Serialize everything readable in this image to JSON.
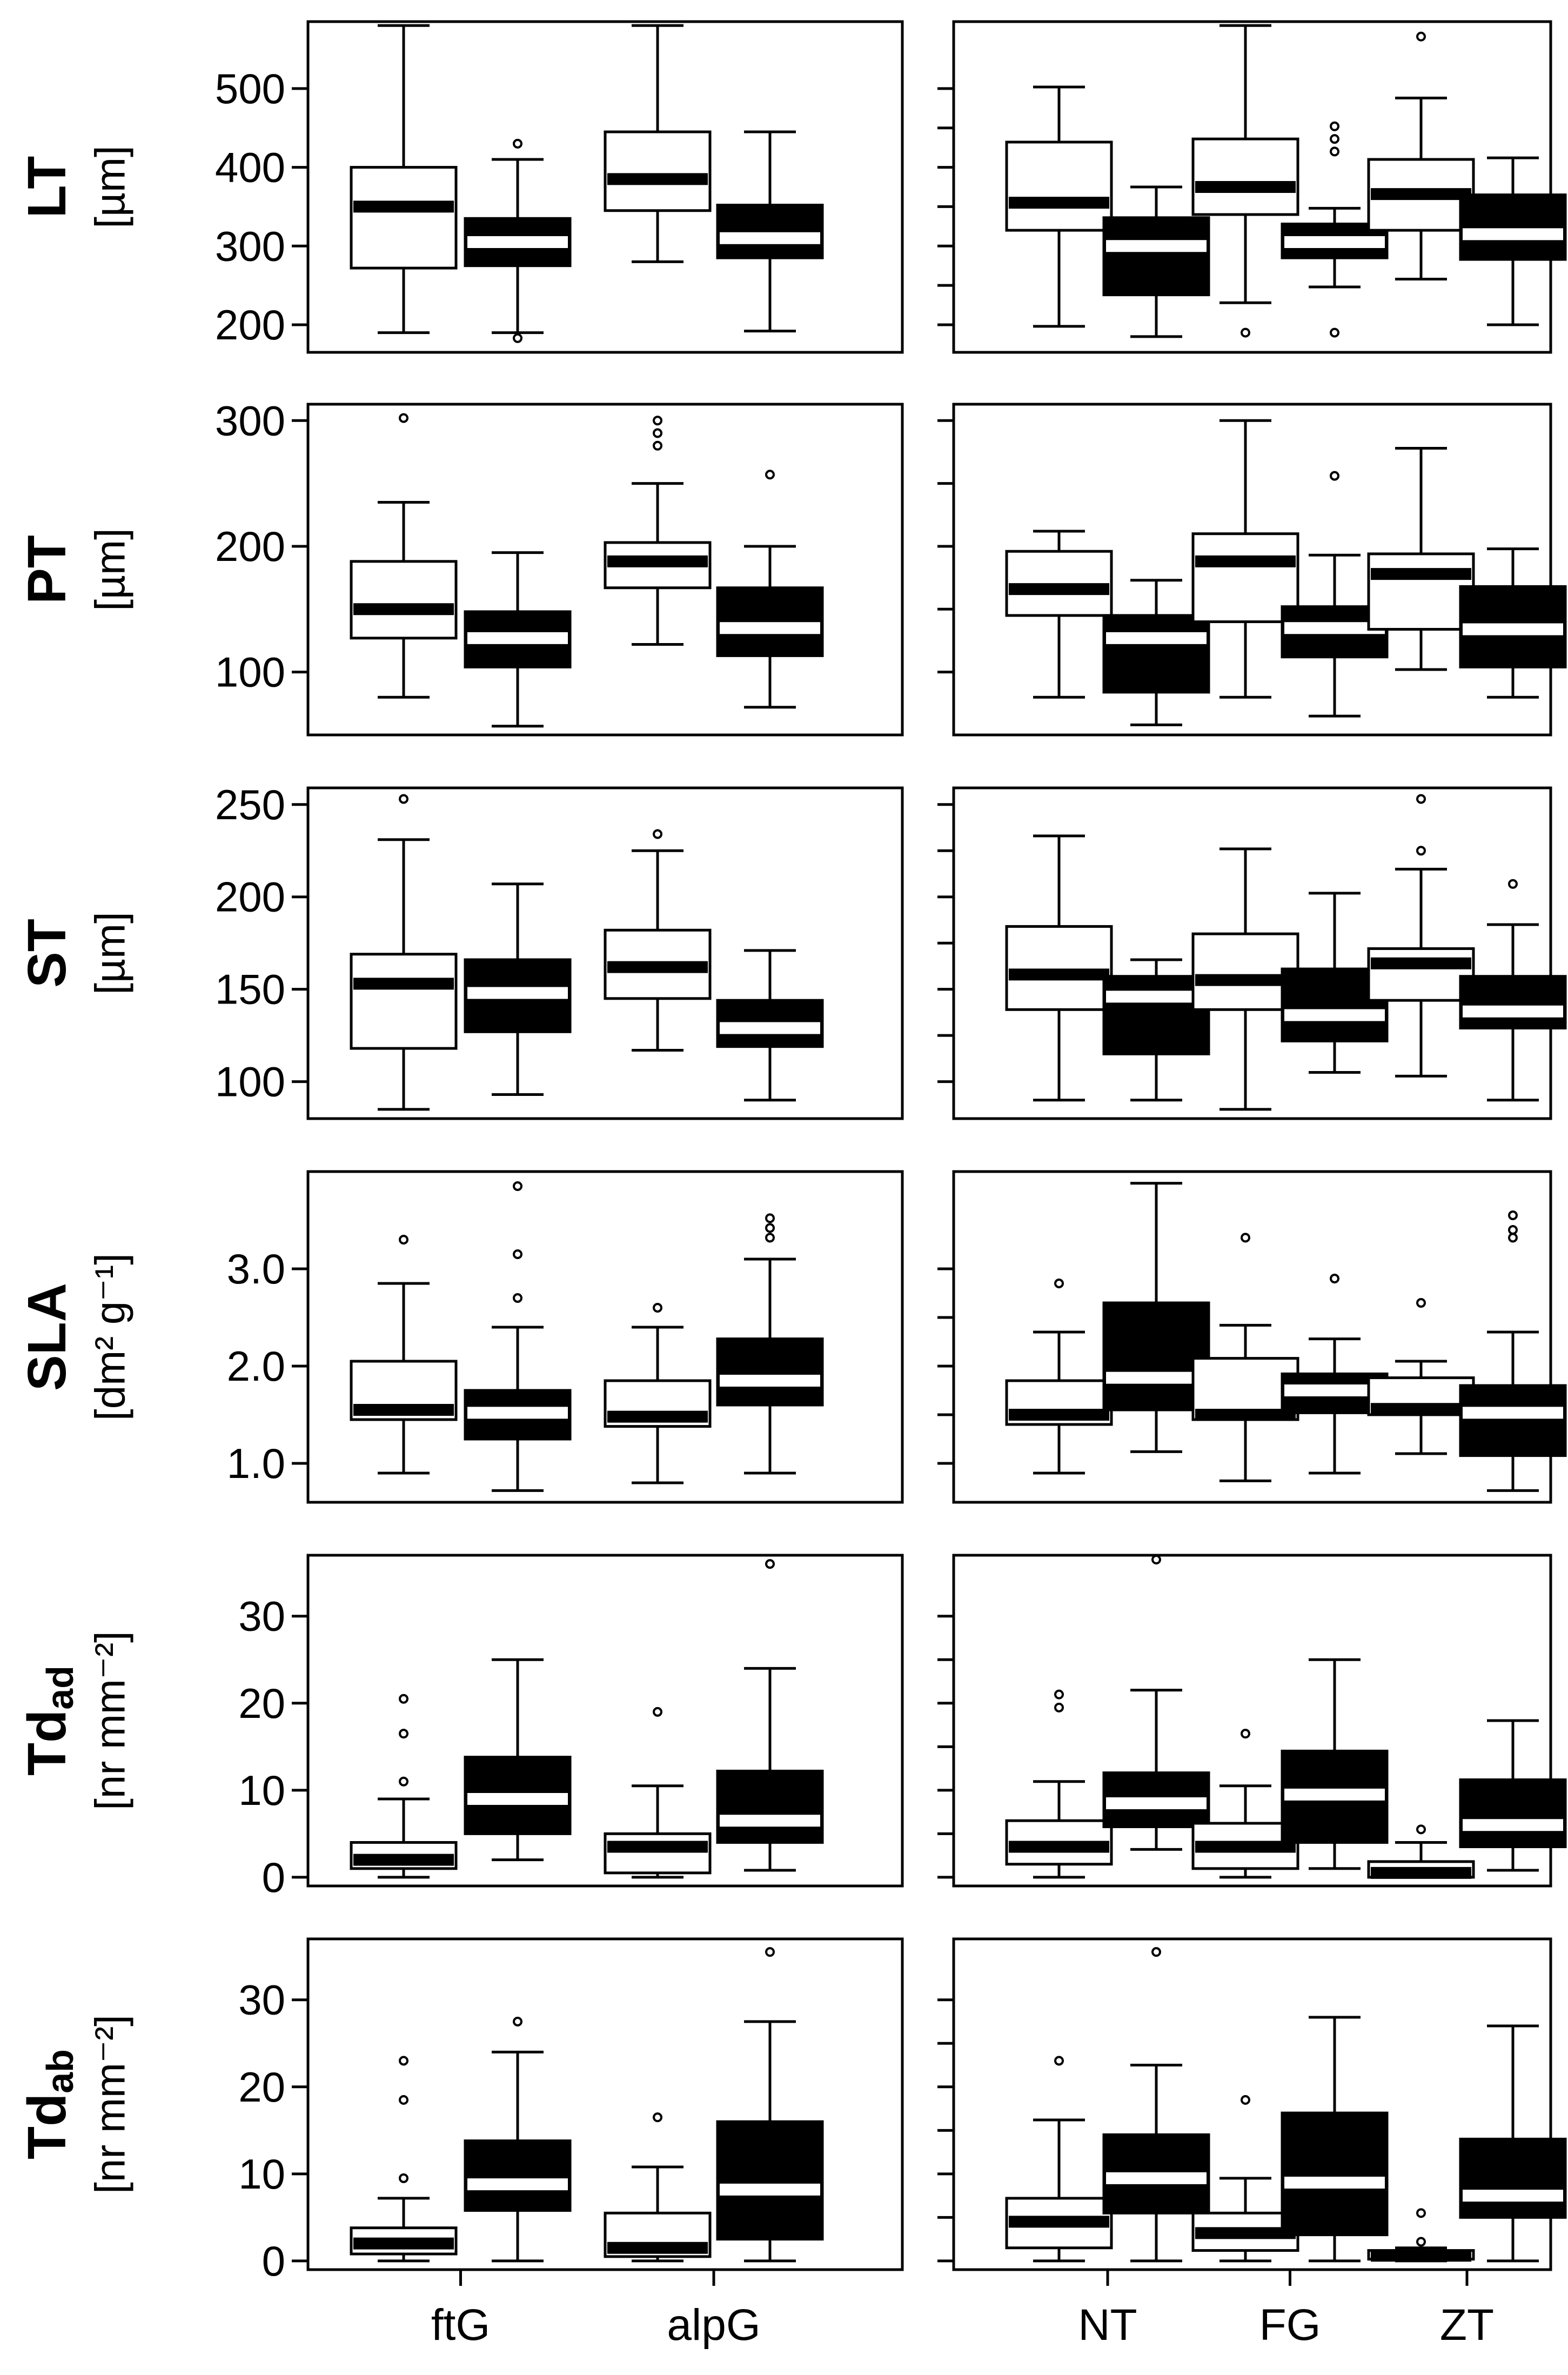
{
  "chart_data": {
    "type": "boxplot",
    "legend": {
      "open_box": "white",
      "filled_box": "black"
    },
    "left_categories": [
      "ftG",
      "alpG"
    ],
    "right_categories": [
      "NT",
      "FG",
      "ZT"
    ],
    "rows": [
      {
        "title": "LT",
        "unit": "[µm]",
        "ylim": [
          165,
          585
        ],
        "yticks": [
          200,
          300,
          400,
          500
        ],
        "ytick_labels": [
          "200",
          "300",
          "400",
          "500"
        ],
        "left": [
          {
            "category": "ftG",
            "fill": "white",
            "whisker_low": 190,
            "q1": 272,
            "median": 350,
            "q3": 400,
            "whisker_high": 580,
            "outliers": []
          },
          {
            "category": "ftG",
            "fill": "black",
            "whisker_low": 190,
            "q1": 275,
            "median": 305,
            "q3": 335,
            "whisker_high": 410,
            "outliers": [
              430,
              183
            ]
          },
          {
            "category": "alpG",
            "fill": "white",
            "whisker_low": 280,
            "q1": 345,
            "median": 385,
            "q3": 445,
            "whisker_high": 580,
            "outliers": []
          },
          {
            "category": "alpG",
            "fill": "black",
            "whisker_low": 192,
            "q1": 285,
            "median": 310,
            "q3": 352,
            "whisker_high": 445,
            "outliers": []
          }
        ],
        "right": [
          {
            "category": "NT",
            "fill": "white",
            "whisker_low": 198,
            "q1": 320,
            "median": 355,
            "q3": 432,
            "whisker_high": 502,
            "outliers": []
          },
          {
            "category": "NT",
            "fill": "black",
            "whisker_low": 185,
            "q1": 238,
            "median": 300,
            "q3": 336,
            "whisker_high": 375,
            "outliers": []
          },
          {
            "category": "FG",
            "fill": "white",
            "whisker_low": 228,
            "q1": 340,
            "median": 375,
            "q3": 436,
            "whisker_high": 580,
            "outliers": [
              190
            ]
          },
          {
            "category": "FG",
            "fill": "black",
            "whisker_low": 248,
            "q1": 285,
            "median": 305,
            "q3": 328,
            "whisker_high": 348,
            "outliers": [
              452,
              436,
              420,
              190
            ]
          },
          {
            "category": "ZT",
            "fill": "white",
            "whisker_low": 258,
            "q1": 320,
            "median": 366,
            "q3": 410,
            "whisker_high": 488,
            "outliers": [
              566
            ]
          },
          {
            "category": "ZT",
            "fill": "black",
            "whisker_low": 200,
            "q1": 283,
            "median": 315,
            "q3": 365,
            "whisker_high": 412,
            "outliers": []
          }
        ]
      },
      {
        "title": "PT",
        "unit": "[µm]",
        "ylim": [
          50,
          313
        ],
        "yticks": [
          100,
          200,
          300
        ],
        "ytick_labels": [
          "100",
          "200",
          "300"
        ],
        "left": [
          {
            "category": "ftG",
            "fill": "white",
            "whisker_low": 80,
            "q1": 127,
            "median": 150,
            "q3": 188,
            "whisker_high": 235,
            "outliers": [
              302
            ]
          },
          {
            "category": "ftG",
            "fill": "black",
            "whisker_low": 57,
            "q1": 104,
            "median": 127,
            "q3": 148,
            "whisker_high": 195,
            "outliers": []
          },
          {
            "category": "alpG",
            "fill": "white",
            "whisker_low": 122,
            "q1": 167,
            "median": 188,
            "q3": 203,
            "whisker_high": 250,
            "outliers": [
              300,
              290,
              280
            ]
          },
          {
            "category": "alpG",
            "fill": "black",
            "whisker_low": 72,
            "q1": 113,
            "median": 135,
            "q3": 167,
            "whisker_high": 200,
            "outliers": [
              257
            ]
          }
        ],
        "right": [
          {
            "category": "NT",
            "fill": "white",
            "whisker_low": 80,
            "q1": 145,
            "median": 166,
            "q3": 196,
            "whisker_high": 212,
            "outliers": []
          },
          {
            "category": "NT",
            "fill": "black",
            "whisker_low": 58,
            "q1": 84,
            "median": 127,
            "q3": 145,
            "whisker_high": 173,
            "outliers": []
          },
          {
            "category": "FG",
            "fill": "white",
            "whisker_low": 80,
            "q1": 140,
            "median": 188,
            "q3": 210,
            "whisker_high": 300,
            "outliers": []
          },
          {
            "category": "FG",
            "fill": "black",
            "whisker_low": 65,
            "q1": 112,
            "median": 135,
            "q3": 152,
            "whisker_high": 193,
            "outliers": [
              256
            ]
          },
          {
            "category": "ZT",
            "fill": "white",
            "whisker_low": 102,
            "q1": 134,
            "median": 178,
            "q3": 194,
            "whisker_high": 278,
            "outliers": []
          },
          {
            "category": "ZT",
            "fill": "black",
            "whisker_low": 80,
            "q1": 104,
            "median": 134,
            "q3": 168,
            "whisker_high": 198,
            "outliers": []
          }
        ]
      },
      {
        "title": "ST",
        "unit": "[µm]",
        "ylim": [
          80,
          259
        ],
        "yticks": [
          100,
          150,
          200,
          250
        ],
        "ytick_labels": [
          "100",
          "150",
          "200",
          "250"
        ],
        "left": [
          {
            "category": "ftG",
            "fill": "white",
            "whisker_low": 85,
            "q1": 118,
            "median": 153,
            "q3": 169,
            "whisker_high": 231,
            "outliers": [
              253
            ]
          },
          {
            "category": "ftG",
            "fill": "black",
            "whisker_low": 93,
            "q1": 127,
            "median": 148,
            "q3": 166,
            "whisker_high": 207,
            "outliers": []
          },
          {
            "category": "alpG",
            "fill": "white",
            "whisker_low": 117,
            "q1": 145,
            "median": 162,
            "q3": 182,
            "whisker_high": 225,
            "outliers": [
              234
            ]
          },
          {
            "category": "alpG",
            "fill": "black",
            "whisker_low": 90,
            "q1": 119,
            "median": 129,
            "q3": 144,
            "whisker_high": 171,
            "outliers": []
          }
        ],
        "right": [
          {
            "category": "NT",
            "fill": "white",
            "whisker_low": 90,
            "q1": 139,
            "median": 158,
            "q3": 184,
            "whisker_high": 233,
            "outliers": []
          },
          {
            "category": "NT",
            "fill": "black",
            "whisker_low": 90,
            "q1": 115,
            "median": 146,
            "q3": 157,
            "whisker_high": 166,
            "outliers": []
          },
          {
            "category": "FG",
            "fill": "white",
            "whisker_low": 85,
            "q1": 139,
            "median": 155,
            "q3": 180,
            "whisker_high": 226,
            "outliers": []
          },
          {
            "category": "FG",
            "fill": "black",
            "whisker_low": 105,
            "q1": 122,
            "median": 136,
            "q3": 161,
            "whisker_high": 202,
            "outliers": []
          },
          {
            "category": "ZT",
            "fill": "white",
            "whisker_low": 103,
            "q1": 144,
            "median": 164,
            "q3": 172,
            "whisker_high": 215,
            "outliers": [
              253,
              225
            ]
          },
          {
            "category": "ZT",
            "fill": "black",
            "whisker_low": 90,
            "q1": 129,
            "median": 138,
            "q3": 157,
            "whisker_high": 185,
            "outliers": [
              207
            ]
          }
        ]
      },
      {
        "title": "SLA",
        "unit": "[dm² g⁻¹]",
        "ylim": [
          0.6,
          4.0
        ],
        "yticks": [
          1.0,
          2.0,
          3.0
        ],
        "ytick_labels": [
          "1.0",
          "2.0",
          "3.0"
        ],
        "left": [
          {
            "category": "ftG",
            "fill": "white",
            "whisker_low": 0.9,
            "q1": 1.45,
            "median": 1.55,
            "q3": 2.05,
            "whisker_high": 2.85,
            "outliers": [
              3.3
            ]
          },
          {
            "category": "ftG",
            "fill": "black",
            "whisker_low": 0.72,
            "q1": 1.25,
            "median": 1.52,
            "q3": 1.75,
            "whisker_high": 2.4,
            "outliers": [
              3.85,
              3.15,
              2.7
            ]
          },
          {
            "category": "alpG",
            "fill": "white",
            "whisker_low": 0.8,
            "q1": 1.38,
            "median": 1.48,
            "q3": 1.85,
            "whisker_high": 2.4,
            "outliers": [
              2.6
            ]
          },
          {
            "category": "alpG",
            "fill": "black",
            "whisker_low": 0.9,
            "q1": 1.6,
            "median": 1.85,
            "q3": 2.28,
            "whisker_high": 3.1,
            "outliers": [
              3.52,
              3.42,
              3.32
            ]
          }
        ],
        "right": [
          {
            "category": "NT",
            "fill": "white",
            "whisker_low": 0.9,
            "q1": 1.4,
            "median": 1.5,
            "q3": 1.85,
            "whisker_high": 2.35,
            "outliers": [
              2.85
            ]
          },
          {
            "category": "NT",
            "fill": "black",
            "whisker_low": 1.12,
            "q1": 1.55,
            "median": 1.88,
            "q3": 2.65,
            "whisker_high": 3.88,
            "outliers": []
          },
          {
            "category": "FG",
            "fill": "white",
            "whisker_low": 0.82,
            "q1": 1.45,
            "median": 1.5,
            "q3": 2.08,
            "whisker_high": 2.42,
            "outliers": [
              3.32
            ]
          },
          {
            "category": "FG",
            "fill": "black",
            "whisker_low": 0.9,
            "q1": 1.52,
            "median": 1.75,
            "q3": 1.92,
            "whisker_high": 2.28,
            "outliers": [
              2.9
            ]
          },
          {
            "category": "ZT",
            "fill": "white",
            "whisker_low": 1.1,
            "q1": 1.5,
            "median": 1.56,
            "q3": 1.88,
            "whisker_high": 2.05,
            "outliers": [
              2.65
            ]
          },
          {
            "category": "ZT",
            "fill": "black",
            "whisker_low": 0.72,
            "q1": 1.08,
            "median": 1.52,
            "q3": 1.8,
            "whisker_high": 2.35,
            "outliers": [
              3.55,
              3.4,
              3.32
            ]
          }
        ]
      },
      {
        "title": "Td",
        "title_sub": "ad",
        "unit": "[nr mm⁻²]",
        "ylim": [
          -1,
          37
        ],
        "yticks": [
          0,
          10,
          20,
          30
        ],
        "ytick_labels": [
          "0",
          "10",
          "20",
          "30"
        ],
        "left": [
          {
            "category": "ftG",
            "fill": "white",
            "whisker_low": 0,
            "q1": 1,
            "median": 2,
            "q3": 4,
            "whisker_high": 9,
            "outliers": [
              20.5,
              16.5,
              11
            ]
          },
          {
            "category": "ftG",
            "fill": "black",
            "whisker_low": 2,
            "q1": 5,
            "median": 9,
            "q3": 13.8,
            "whisker_high": 25,
            "outliers": []
          },
          {
            "category": "alpG",
            "fill": "white",
            "whisker_low": 0,
            "q1": 0.5,
            "median": 3.5,
            "q3": 5,
            "whisker_high": 10.5,
            "outliers": [
              19
            ]
          },
          {
            "category": "alpG",
            "fill": "black",
            "whisker_low": 0.8,
            "q1": 4,
            "median": 6.5,
            "q3": 12.2,
            "whisker_high": 24,
            "outliers": [
              36
            ]
          }
        ],
        "right": [
          {
            "category": "NT",
            "fill": "white",
            "whisker_low": 0,
            "q1": 1.5,
            "median": 3.5,
            "q3": 6.5,
            "whisker_high": 11,
            "outliers": [
              21,
              19.5
            ]
          },
          {
            "category": "NT",
            "fill": "black",
            "whisker_low": 3.2,
            "q1": 5.8,
            "median": 8.5,
            "q3": 12,
            "whisker_high": 21.5,
            "outliers": [
              36.5
            ]
          },
          {
            "category": "FG",
            "fill": "white",
            "whisker_low": 0,
            "q1": 1,
            "median": 3.5,
            "q3": 6.2,
            "whisker_high": 10.5,
            "outliers": [
              16.5
            ]
          },
          {
            "category": "FG",
            "fill": "black",
            "whisker_low": 1,
            "q1": 4,
            "median": 9.5,
            "q3": 14.5,
            "whisker_high": 25,
            "outliers": []
          },
          {
            "category": "ZT",
            "fill": "white",
            "whisker_low": 0,
            "q1": 0,
            "median": 0.5,
            "q3": 1.8,
            "whisker_high": 4,
            "outliers": [
              5.5
            ]
          },
          {
            "category": "ZT",
            "fill": "black",
            "whisker_low": 0.8,
            "q1": 3.5,
            "median": 6,
            "q3": 11.2,
            "whisker_high": 18,
            "outliers": []
          }
        ]
      },
      {
        "title": "Td",
        "title_sub": "ab",
        "unit": "[nr mm⁻²]",
        "ylim": [
          -1,
          37
        ],
        "yticks": [
          0,
          10,
          20,
          30
        ],
        "ytick_labels": [
          "0",
          "10",
          "20",
          "30"
        ],
        "left": [
          {
            "category": "ftG",
            "fill": "white",
            "whisker_low": 0,
            "q1": 0.8,
            "median": 2,
            "q3": 3.8,
            "whisker_high": 7.2,
            "outliers": [
              23,
              18.5,
              9.5
            ]
          },
          {
            "category": "ftG",
            "fill": "black",
            "whisker_low": 0,
            "q1": 5.8,
            "median": 8.8,
            "q3": 13.8,
            "whisker_high": 24,
            "outliers": [
              27.5
            ]
          },
          {
            "category": "alpG",
            "fill": "white",
            "whisker_low": 0,
            "q1": 0.5,
            "median": 1.5,
            "q3": 5.5,
            "whisker_high": 10.8,
            "outliers": [
              16.5
            ]
          },
          {
            "category": "alpG",
            "fill": "black",
            "whisker_low": 0,
            "q1": 2.5,
            "median": 8.2,
            "q3": 16,
            "whisker_high": 27.5,
            "outliers": [
              35.5
            ]
          }
        ],
        "right": [
          {
            "category": "NT",
            "fill": "white",
            "whisker_low": 0,
            "q1": 1.5,
            "median": 4.5,
            "q3": 7.2,
            "whisker_high": 16.2,
            "outliers": [
              23
            ]
          },
          {
            "category": "NT",
            "fill": "black",
            "whisker_low": 0,
            "q1": 5.5,
            "median": 9.5,
            "q3": 14.5,
            "whisker_high": 22.5,
            "outliers": [
              35.5
            ]
          },
          {
            "category": "FG",
            "fill": "white",
            "whisker_low": 0,
            "q1": 1.2,
            "median": 3.2,
            "q3": 5.5,
            "whisker_high": 9.5,
            "outliers": [
              18.5
            ]
          },
          {
            "category": "FG",
            "fill": "black",
            "whisker_low": 0,
            "q1": 3,
            "median": 9,
            "q3": 17,
            "whisker_high": 28,
            "outliers": []
          },
          {
            "category": "ZT",
            "fill": "white",
            "whisker_low": 0,
            "q1": 0.2,
            "median": 0.6,
            "q3": 1.2,
            "whisker_high": 1.5,
            "outliers": [
              5.5,
              2.2
            ]
          },
          {
            "category": "ZT",
            "fill": "black",
            "whisker_low": 0,
            "q1": 5,
            "median": 7.5,
            "q3": 14,
            "whisker_high": 27,
            "outliers": []
          }
        ]
      }
    ]
  }
}
